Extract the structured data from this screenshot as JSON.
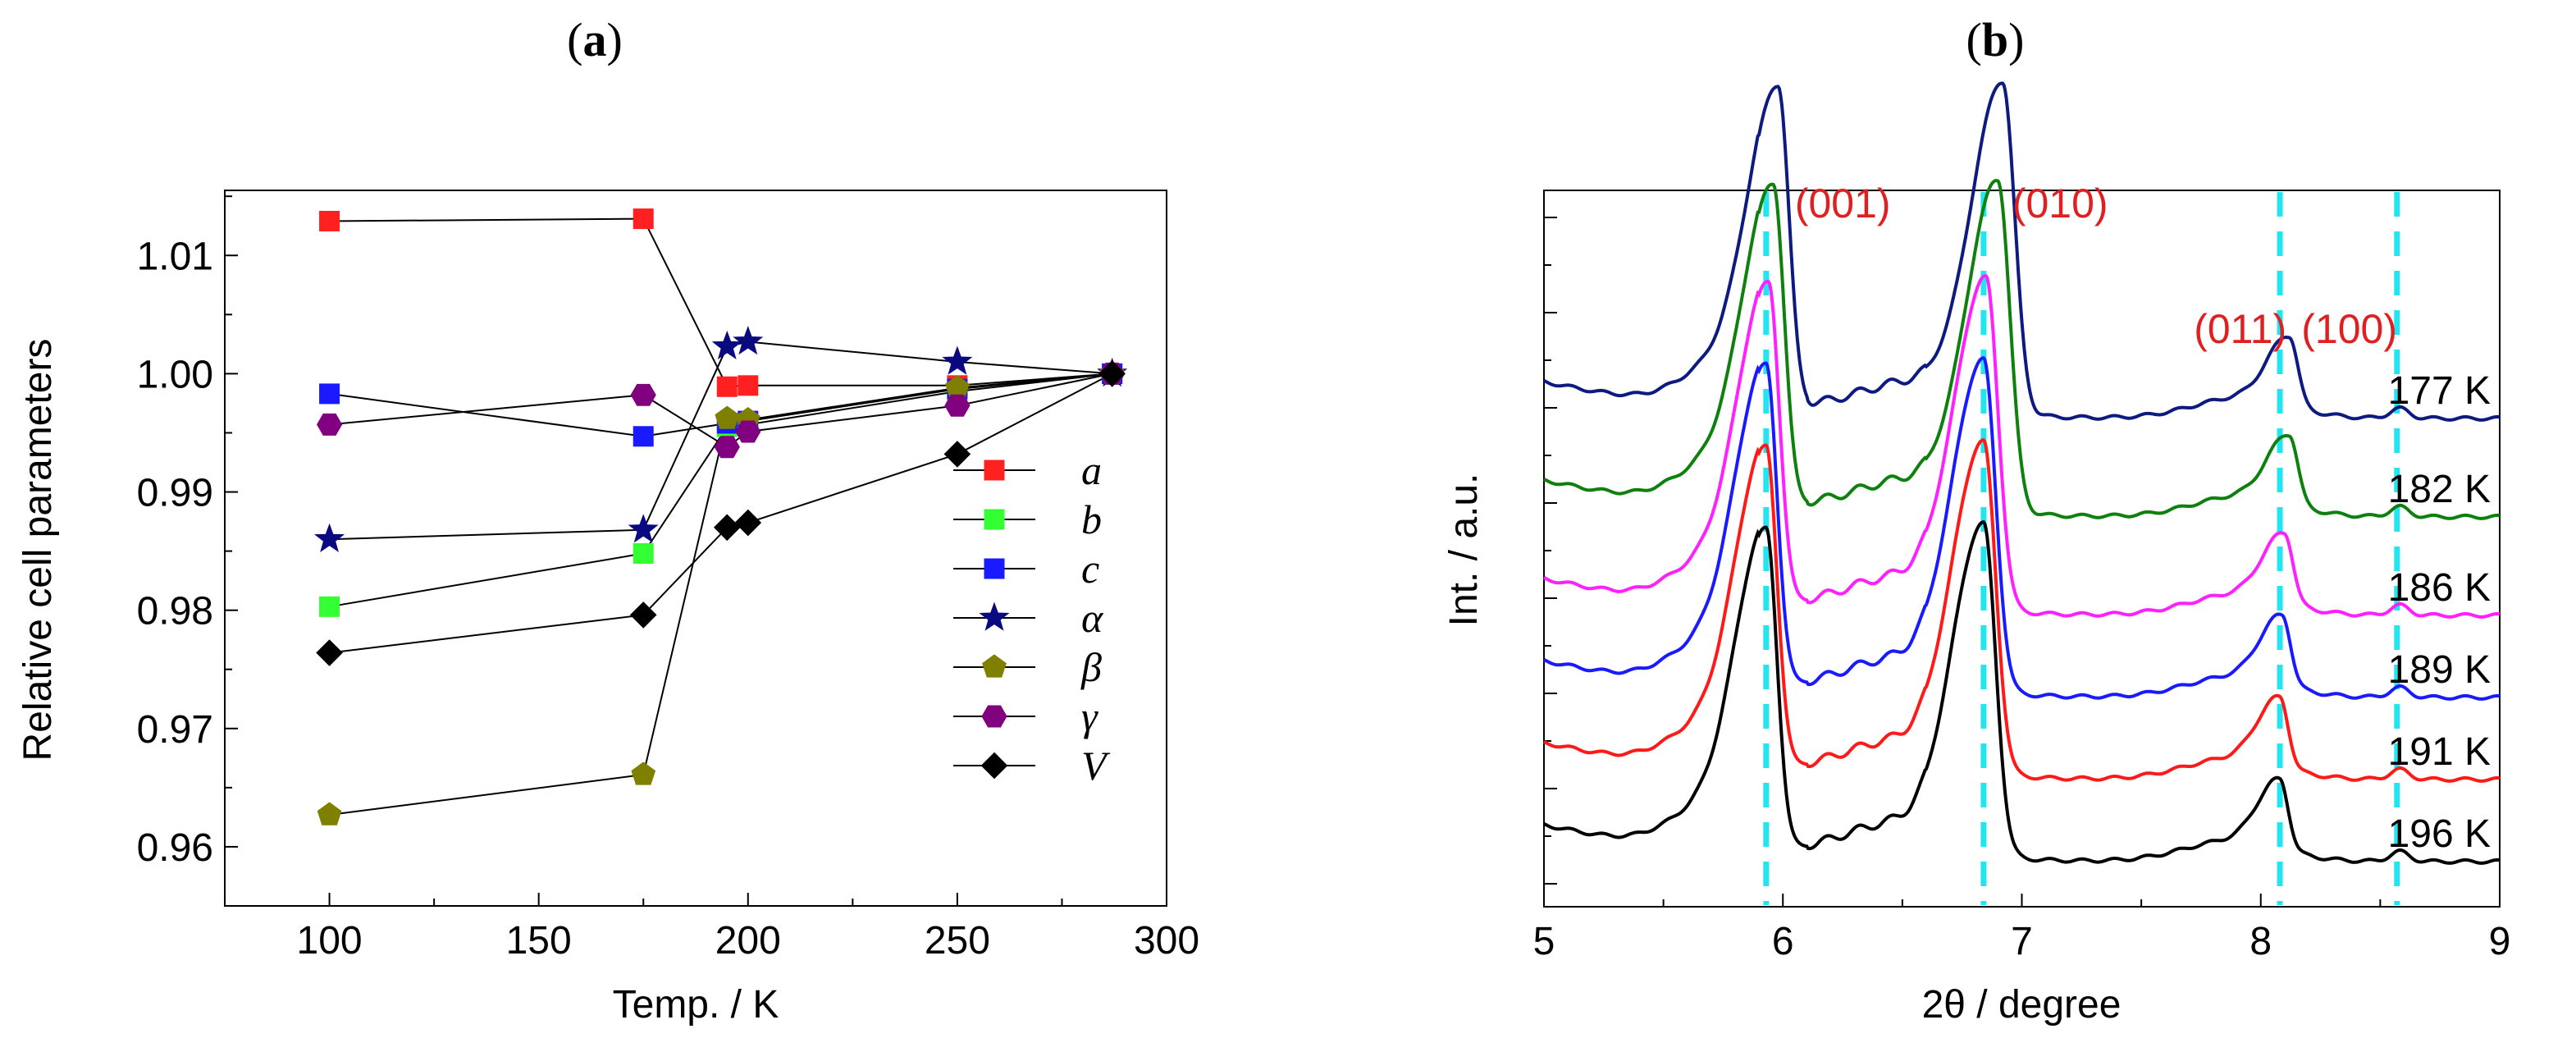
{
  "panels": {
    "a_label": "a",
    "b_label": "b"
  },
  "chart_data": [
    {
      "type": "scatter",
      "panel": "a",
      "xlabel": "Temp. / K",
      "ylabel": "Relative cell parameters",
      "xlim": [
        75,
        300
      ],
      "ylim": [
        0.955,
        1.0155
      ],
      "xticks": [
        100,
        150,
        200,
        250,
        300
      ],
      "yticks": [
        0.96,
        0.97,
        0.98,
        0.99,
        1.0,
        1.01
      ],
      "ytick_labels": [
        "0.96",
        "0.97",
        "0.98",
        "0.99",
        "1.00",
        "1.01"
      ],
      "legend_position": "right",
      "series": [
        {
          "name": "a",
          "marker": "square",
          "color": "#ff2020",
          "x": [
            100,
            175,
            195,
            200,
            250,
            287
          ],
          "y": [
            1.0129,
            1.0131,
            0.9989,
            0.999,
            0.999,
            1.0
          ]
        },
        {
          "name": "b",
          "marker": "square",
          "color": "#33ff33",
          "x": [
            100,
            175,
            195,
            200,
            250,
            287
          ],
          "y": [
            0.9803,
            0.9848,
            0.9955,
            0.9957,
            0.9985,
            1.0
          ]
        },
        {
          "name": "c",
          "marker": "square",
          "color": "#1a1aff",
          "x": [
            100,
            175,
            195,
            200,
            250,
            287
          ],
          "y": [
            0.9983,
            0.9947,
            0.9958,
            0.996,
            0.9987,
            1.0
          ]
        },
        {
          "name": "α",
          "marker": "star",
          "color": "#0a0a80",
          "x": [
            100,
            175,
            195,
            200,
            250,
            287
          ],
          "y": [
            0.986,
            0.9868,
            1.0023,
            1.0027,
            1.001,
            1.0
          ]
        },
        {
          "name": "β",
          "marker": "pentagon",
          "color": "#808000",
          "x": [
            100,
            175,
            195,
            200,
            250,
            287
          ],
          "y": [
            0.9627,
            0.9661,
            0.9962,
            0.9961,
            0.9988,
            1.0
          ]
        },
        {
          "name": "γ",
          "marker": "hexagon",
          "color": "#800080",
          "x": [
            100,
            175,
            195,
            200,
            250,
            287
          ],
          "y": [
            0.9957,
            0.9982,
            0.9938,
            0.9951,
            0.9973,
            1.0
          ]
        },
        {
          "name": "V",
          "marker": "diamond",
          "color": "#000000",
          "x": [
            100,
            175,
            195,
            200,
            250,
            287
          ],
          "y": [
            0.9764,
            0.9796,
            0.987,
            0.9874,
            0.9932,
            1.0
          ]
        }
      ]
    },
    {
      "type": "line",
      "panel": "b",
      "xlabel": "2θ / degree",
      "ylabel": "Int. / a.u.",
      "xlim": [
        5,
        9
      ],
      "xticks": [
        5,
        6,
        7,
        8,
        9
      ],
      "peak_labels": [
        {
          "text": "(001)",
          "x": 6.05
        },
        {
          "text": "(010)",
          "x": 6.96
        },
        {
          "text": "(011)",
          "x": 7.72
        },
        {
          "text": "(100)",
          "x": 8.17
        }
      ],
      "reference_lines_x": [
        5.93,
        6.84,
        8.08,
        8.57
      ],
      "series": [
        {
          "name": "177 K",
          "color": "#0d1a80",
          "baseline": 5.95,
          "p1x": 5.98,
          "p2x": 6.92,
          "p3x": 8.12,
          "flat_top": true
        },
        {
          "name": "182 K",
          "color": "#0d800d",
          "baseline": 4.75,
          "p1x": 5.96,
          "p2x": 6.9,
          "p3x": 8.12,
          "flat_top": false
        },
        {
          "name": "186 K",
          "color": "#ff20ff",
          "baseline": 3.55,
          "p1x": 5.94,
          "p2x": 6.85,
          "p3x": 8.1,
          "flat_top": false
        },
        {
          "name": "189 K",
          "color": "#1a1aff",
          "baseline": 2.55,
          "p1x": 5.93,
          "p2x": 6.84,
          "p3x": 8.09,
          "flat_top": false
        },
        {
          "name": "191 K",
          "color": "#ff1a1a",
          "baseline": 1.55,
          "p1x": 5.93,
          "p2x": 6.84,
          "p3x": 8.08,
          "flat_top": false
        },
        {
          "name": "196 K",
          "color": "#000000",
          "baseline": 0.55,
          "p1x": 5.93,
          "p2x": 6.84,
          "p3x": 8.08,
          "flat_top": false
        }
      ]
    }
  ]
}
